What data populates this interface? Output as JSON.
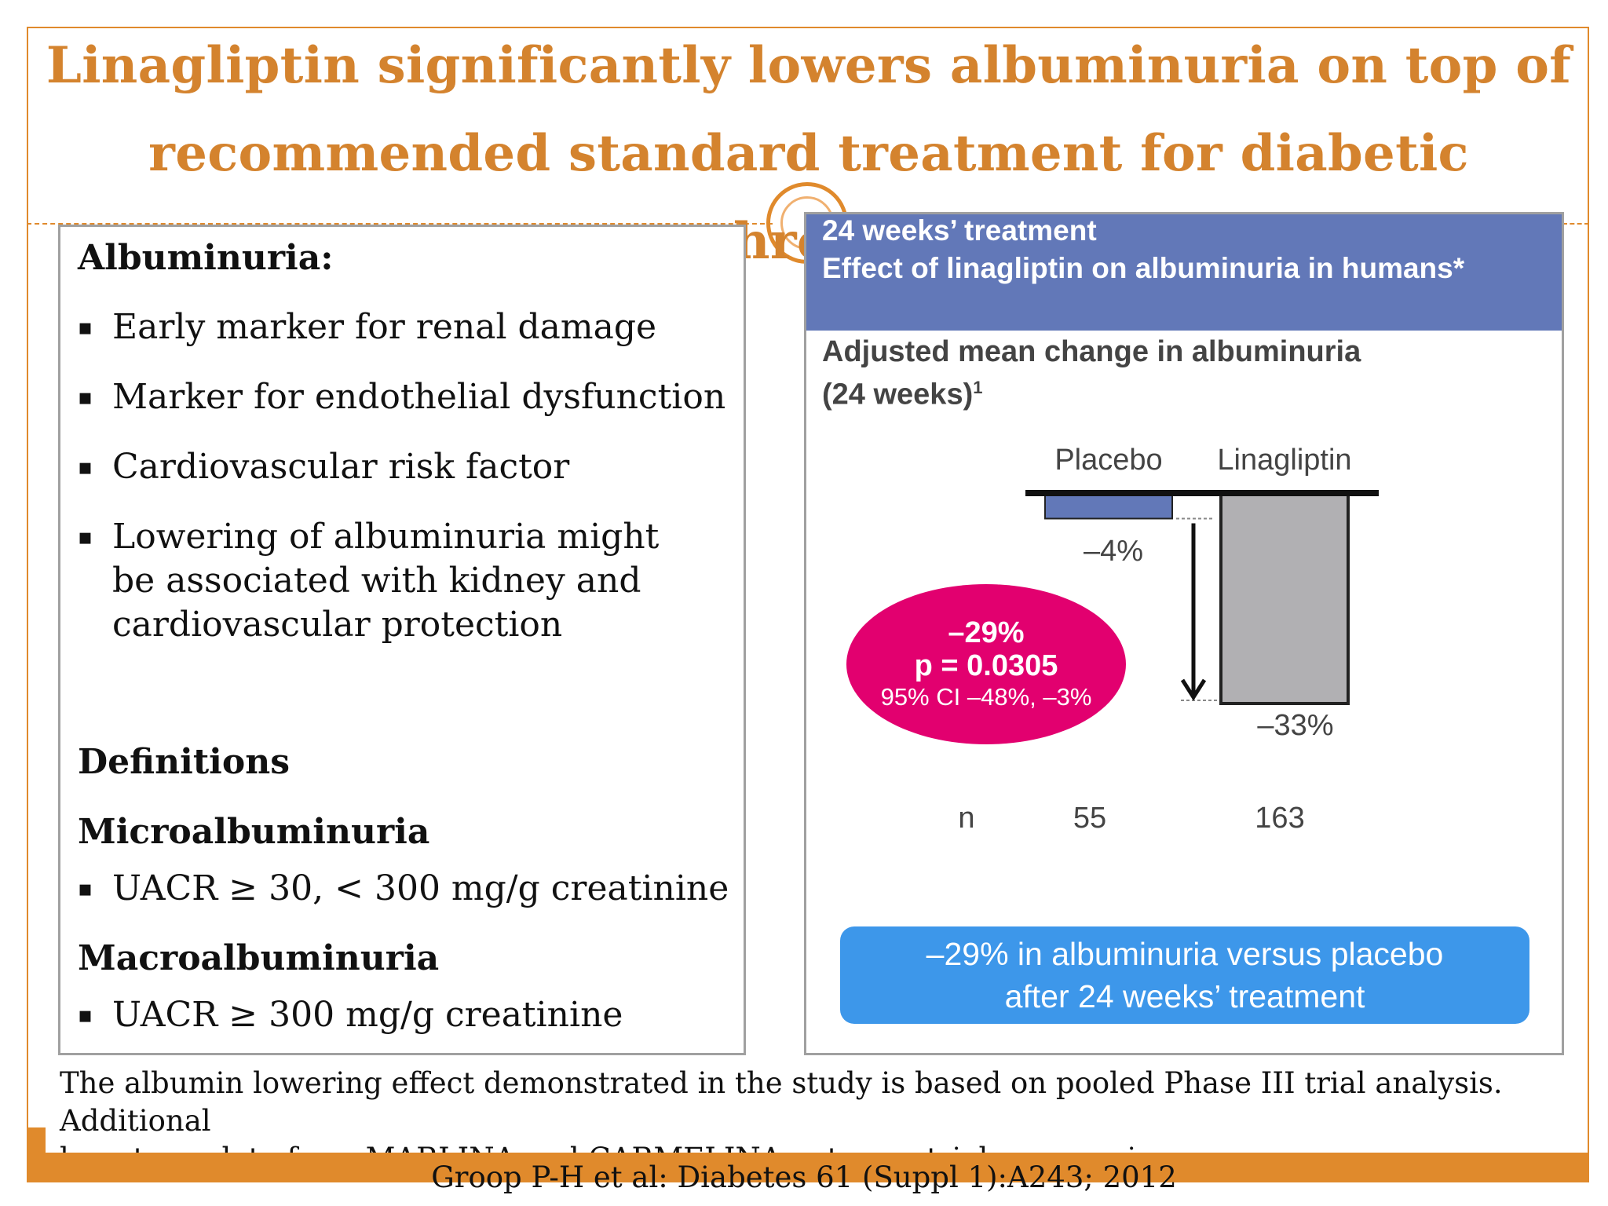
{
  "title": {
    "line1": "Linagliptin significantly lowers albuminuria on top of",
    "line2": "recommended standard treatment for diabetic nephropathy"
  },
  "left_panel": {
    "heading": "Albuminuria:",
    "bullets": [
      "Early marker for renal damage",
      "Marker for endothelial dysfunction",
      "Cardiovascular risk factor",
      "Lowering of albuminuria might be associated with kidney and cardiovascular protection"
    ],
    "definitions_heading": "Definitions",
    "micro_heading": "Microalbuminuria",
    "micro_bullet": "UACR ≥ 30, < 300 mg/g creatinine",
    "macro_heading": "Macroalbuminuria",
    "macro_bullet": "UACR ≥ 300 mg/g creatinine",
    "bullet_glyph": "▪"
  },
  "right_panel": {
    "header_line1": "24 weeks’ treatment",
    "header_line2": "Effect of linagliptin on albuminuria in humans*",
    "subtitle_line1": "Adjusted mean change in albuminuria",
    "subtitle_line2": "(24 weeks)",
    "subtitle_sup": "1",
    "header_color": "#6278b8"
  },
  "chart_data": {
    "type": "bar",
    "categories": [
      "Placebo",
      "Linagliptin"
    ],
    "values": [
      -4,
      -33
    ],
    "value_labels": [
      "–4%",
      "–33%"
    ],
    "ylim": [
      -33,
      0
    ],
    "colors": [
      "#6278b8",
      "#b1b0b3"
    ],
    "n_label": "n",
    "n_values": [
      "55",
      "163"
    ],
    "difference": {
      "value": "–29%",
      "p_value": "p = 0.0305",
      "ci": "95% CI –48%, –3%",
      "color": "#e2006f"
    }
  },
  "summary": {
    "line1": "–29% in albuminuria versus placebo",
    "line2": "after 24 weeks’ treatment",
    "color": "#3d97ea"
  },
  "footnote": {
    "line1": "The albumin lowering effect demonstrated in the study is based on pooled Phase III trial analysis. Additional",
    "line2": "long term data  from MARLINA and CARMELINA outcome trial are ongoing."
  },
  "citation": "Groop P-H et al: Diabetes 61 (Suppl 1):A243; 2012",
  "accent_color": "#e08a2c"
}
